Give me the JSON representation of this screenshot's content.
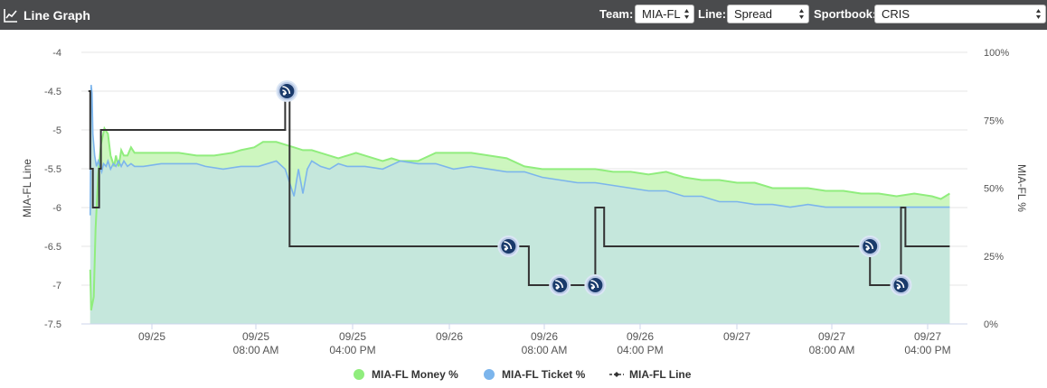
{
  "header": {
    "title": "Line Graph",
    "icon": "line-chart-icon",
    "team_label": "Team:",
    "team_value": "MIA-FL",
    "line_label": "Line:",
    "line_value": "Spread",
    "sportsbook_label": "Sportbook:",
    "sportsbook_value": "CRIS"
  },
  "colors": {
    "header_bg": "#4a4b4d",
    "money": "#90ed7d",
    "money_fill": "#c8f5b8",
    "ticket": "#7cb5ec",
    "ticket_fill": "#c4e6dd",
    "line": "#333333",
    "marker": "#1a3a6b"
  },
  "chart_data": {
    "type": "line",
    "left_axis": {
      "label": "MIA-FL Line",
      "range": [
        -7.5,
        -4
      ],
      "ticks": [
        "-4",
        "-4.5",
        "-5",
        "-5.5",
        "-6",
        "-6.5",
        "-7",
        "-7.5"
      ]
    },
    "right_axis": {
      "label": "MIA-FL %",
      "range": [
        0,
        100
      ],
      "ticks": [
        "100%",
        "75%",
        "50%",
        "25%",
        "0%"
      ]
    },
    "x_ticks": [
      {
        "day": "09/25",
        "time": ""
      },
      {
        "day": "09/25",
        "time": "08:00 AM"
      },
      {
        "day": "09/25",
        "time": "04:00 PM"
      },
      {
        "day": "09/26",
        "time": ""
      },
      {
        "day": "09/26",
        "time": "08:00 AM"
      },
      {
        "day": "09/26",
        "time": "04:00 PM"
      },
      {
        "day": "09/27",
        "time": ""
      },
      {
        "day": "09/27",
        "time": "08:00 AM"
      },
      {
        "day": "09/27",
        "time": "04:00 PM"
      }
    ],
    "legend": [
      "MIA-FL Money %",
      "MIA-FL Ticket %",
      "MIA-FL Line"
    ],
    "series": [
      {
        "name": "MIA-FL Money %",
        "values": [
          [
            1.0,
            20
          ],
          [
            1.1,
            5
          ],
          [
            1.4,
            10
          ],
          [
            1.6,
            35
          ],
          [
            1.9,
            55
          ],
          [
            2.2,
            66
          ],
          [
            2.6,
            72
          ],
          [
            3.0,
            70
          ],
          [
            3.3,
            62
          ],
          [
            3.5,
            60
          ],
          [
            3.7,
            58
          ],
          [
            3.9,
            62
          ],
          [
            4.2,
            58
          ],
          [
            4.5,
            64
          ],
          [
            4.8,
            62
          ],
          [
            5.2,
            62
          ],
          [
            5.6,
            65
          ],
          [
            6.0,
            63
          ],
          [
            7.0,
            63
          ],
          [
            9.0,
            63
          ],
          [
            11.0,
            63
          ],
          [
            13.0,
            62
          ],
          [
            15.0,
            62
          ],
          [
            17.0,
            63
          ],
          [
            18.0,
            64
          ],
          [
            19.5,
            65
          ],
          [
            20.0,
            66
          ],
          [
            20.5,
            67
          ],
          [
            21.0,
            67
          ],
          [
            22.0,
            67
          ],
          [
            23.0,
            66
          ],
          [
            24.0,
            65
          ],
          [
            25.0,
            64
          ],
          [
            26.0,
            64
          ],
          [
            27.0,
            63
          ],
          [
            28.0,
            62
          ],
          [
            29.0,
            61
          ],
          [
            30.0,
            62
          ],
          [
            31.0,
            63
          ],
          [
            32.0,
            62
          ],
          [
            33.0,
            61
          ],
          [
            34.0,
            60
          ],
          [
            35.0,
            61
          ],
          [
            36.0,
            60
          ],
          [
            37.0,
            60
          ],
          [
            38.0,
            60
          ],
          [
            40.0,
            63
          ],
          [
            42.0,
            63
          ],
          [
            44.0,
            63
          ],
          [
            46.0,
            62
          ],
          [
            48.0,
            61
          ],
          [
            50.0,
            58
          ],
          [
            52.0,
            57
          ],
          [
            54.0,
            57
          ],
          [
            56.0,
            57
          ],
          [
            58.0,
            57
          ],
          [
            60.0,
            56
          ],
          [
            62.0,
            56
          ],
          [
            64.0,
            55
          ],
          [
            66.0,
            56
          ],
          [
            68.0,
            54
          ],
          [
            70.0,
            53
          ],
          [
            72.0,
            53
          ],
          [
            74.0,
            52
          ],
          [
            76.0,
            52
          ],
          [
            78.0,
            50
          ],
          [
            80.0,
            50
          ],
          [
            82.0,
            50
          ],
          [
            84.0,
            49
          ],
          [
            86.0,
            49
          ],
          [
            88.0,
            48
          ],
          [
            90.0,
            48
          ],
          [
            92.0,
            47
          ],
          [
            94.0,
            48
          ],
          [
            96.0,
            47
          ],
          [
            97.0,
            46
          ],
          [
            98.0,
            48
          ]
        ]
      },
      {
        "name": "MIA-FL Ticket %",
        "values": [
          [
            1.0,
            40
          ],
          [
            1.1,
            88
          ],
          [
            1.2,
            85
          ],
          [
            1.3,
            70
          ],
          [
            1.5,
            62
          ],
          [
            1.7,
            58
          ],
          [
            1.9,
            60
          ],
          [
            2.1,
            58
          ],
          [
            2.3,
            56
          ],
          [
            2.5,
            59
          ],
          [
            2.8,
            58
          ],
          [
            3.0,
            60
          ],
          [
            3.3,
            57
          ],
          [
            3.6,
            59
          ],
          [
            3.9,
            58
          ],
          [
            4.2,
            60
          ],
          [
            4.5,
            58
          ],
          [
            4.8,
            60
          ],
          [
            5.2,
            58
          ],
          [
            5.6,
            59
          ],
          [
            6.0,
            58
          ],
          [
            7.0,
            58
          ],
          [
            9.0,
            59
          ],
          [
            11.0,
            59
          ],
          [
            13.0,
            59
          ],
          [
            14.0,
            58
          ],
          [
            16.0,
            57
          ],
          [
            18.0,
            58
          ],
          [
            20.0,
            58
          ],
          [
            22.0,
            60
          ],
          [
            23.0,
            57
          ],
          [
            24.0,
            47
          ],
          [
            24.5,
            57
          ],
          [
            25.0,
            48
          ],
          [
            25.5,
            57
          ],
          [
            26.0,
            60
          ],
          [
            27.0,
            58
          ],
          [
            28.0,
            57
          ],
          [
            29.0,
            59
          ],
          [
            30.0,
            58
          ],
          [
            32.0,
            58
          ],
          [
            34.0,
            57
          ],
          [
            36.0,
            60
          ],
          [
            38.0,
            59
          ],
          [
            40.0,
            59
          ],
          [
            42.0,
            57
          ],
          [
            44.0,
            58
          ],
          [
            46.0,
            57
          ],
          [
            48.0,
            56
          ],
          [
            50.0,
            56
          ],
          [
            52.0,
            54
          ],
          [
            54.0,
            53
          ],
          [
            56.0,
            52
          ],
          [
            58.0,
            52
          ],
          [
            60.0,
            51
          ],
          [
            62.0,
            50
          ],
          [
            64.0,
            49
          ],
          [
            66.0,
            49
          ],
          [
            68.0,
            47
          ],
          [
            70.0,
            47
          ],
          [
            72.0,
            45
          ],
          [
            74.0,
            45
          ],
          [
            76.0,
            44
          ],
          [
            78.0,
            44
          ],
          [
            80.0,
            43
          ],
          [
            82.0,
            44
          ],
          [
            84.0,
            43
          ],
          [
            86.0,
            43
          ],
          [
            88.0,
            43
          ],
          [
            90.0,
            43
          ],
          [
            92.0,
            43
          ],
          [
            94.0,
            43
          ],
          [
            96.0,
            43
          ],
          [
            98.0,
            43
          ]
        ]
      },
      {
        "name": "MIA-FL Line",
        "values": [
          [
            0.8,
            -4.5
          ],
          [
            1.0,
            -4.5
          ],
          [
            1.0,
            -5.5
          ],
          [
            1.3,
            -5.5
          ],
          [
            1.3,
            -6.0
          ],
          [
            2.0,
            -6.0
          ],
          [
            2.0,
            -5.5
          ],
          [
            2.2,
            -5.5
          ],
          [
            2.2,
            -5.0
          ],
          [
            23.0,
            -5.0
          ],
          [
            23.0,
            -4.5
          ],
          [
            23.5,
            -4.5
          ],
          [
            23.5,
            -6.5
          ],
          [
            50.5,
            -6.5
          ],
          [
            50.5,
            -7.0
          ],
          [
            54.0,
            -7.0
          ],
          [
            58.0,
            -7.0
          ],
          [
            58.0,
            -6.0
          ],
          [
            59.0,
            -6.0
          ],
          [
            59.0,
            -6.5
          ],
          [
            89.0,
            -6.5
          ],
          [
            89.0,
            -7.0
          ],
          [
            92.5,
            -7.0
          ],
          [
            92.5,
            -6.0
          ],
          [
            93.0,
            -6.0
          ],
          [
            93.0,
            -6.5
          ],
          [
            98.0,
            -6.5
          ]
        ],
        "markers": [
          [
            23.2,
            -4.5
          ],
          [
            48.2,
            -6.5
          ],
          [
            54.0,
            -7.0
          ],
          [
            58.0,
            -7.0
          ],
          [
            89.0,
            -6.5
          ],
          [
            92.5,
            -7.0
          ]
        ]
      }
    ]
  }
}
